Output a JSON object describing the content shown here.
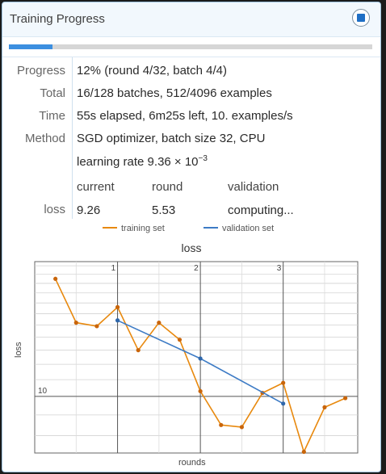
{
  "window": {
    "title": "Training Progress",
    "stop_icon": "stop-icon"
  },
  "progress": {
    "fraction": 0.12
  },
  "labels": {
    "progress": "Progress",
    "total": "Total",
    "time": "Time",
    "method": "Method",
    "loss": "loss"
  },
  "values": {
    "progress": "12% (round 4/32, batch 4/4)",
    "total": "16/128 batches, 512/4096 examples",
    "time": "55s elapsed, 6m25s left, 10. examples/s",
    "method": "SGD optimizer, batch size 32, CPU",
    "learning_rate_prefix": "learning rate 9.36 × 10",
    "learning_rate_exp": "−3"
  },
  "loss_table": {
    "headers": [
      "current",
      "round",
      "validation"
    ],
    "row": [
      "9.26",
      "5.53",
      "computing..."
    ]
  },
  "colors": {
    "training": "#e8890e",
    "validation": "#3d7bc5",
    "accent": "#1f6fc5"
  },
  "chart_data": {
    "type": "line",
    "title": "loss",
    "xlabel": "rounds",
    "ylabel": "loss",
    "xlim": [
      0.0,
      3.9
    ],
    "ylim": [
      7.25,
      21.5
    ],
    "yscale": "log",
    "x_ticks": [
      "1",
      "2",
      "3"
    ],
    "y_ticks": [
      "10"
    ],
    "grid": true,
    "legend_position": "top",
    "series": [
      {
        "name": "training set",
        "x": [
          0.25,
          0.5,
          0.75,
          1.0,
          1.25,
          1.5,
          1.75,
          2.0,
          2.25,
          2.5,
          2.75,
          3.0,
          3.25,
          3.5,
          3.75
        ],
        "y": [
          19.5,
          15.2,
          14.9,
          16.6,
          13.0,
          15.2,
          13.8,
          10.3,
          8.5,
          8.4,
          10.2,
          10.8,
          7.3,
          9.4,
          9.9
        ]
      },
      {
        "name": "validation set",
        "x": [
          1.0,
          2.0,
          3.0
        ],
        "y": [
          15.4,
          12.4,
          9.6
        ]
      }
    ]
  }
}
